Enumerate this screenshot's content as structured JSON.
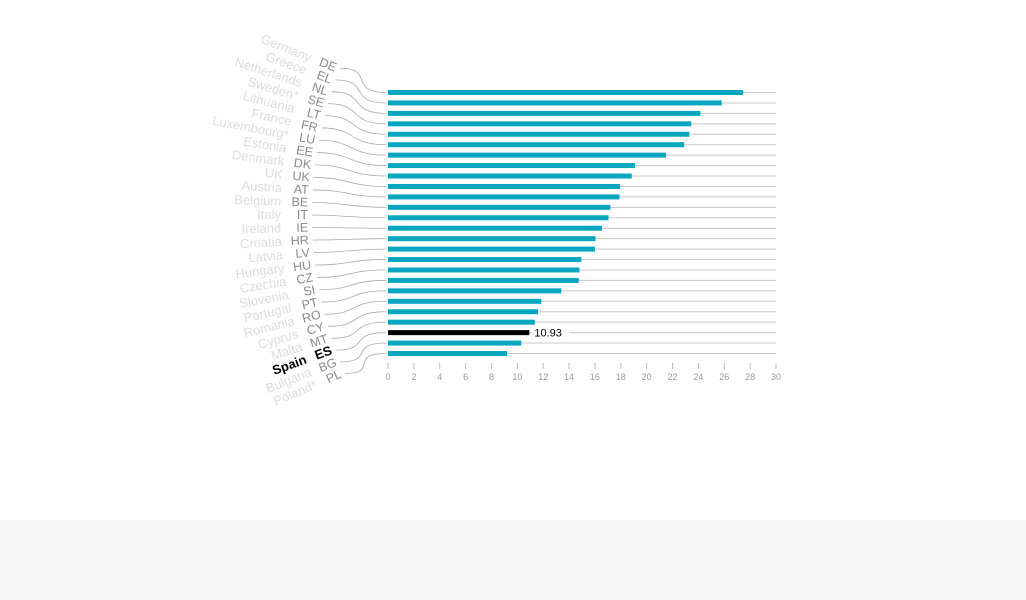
{
  "chart_data": {
    "type": "bar",
    "orientation": "horizontal",
    "codes": [
      "DE",
      "EL",
      "NL",
      "SE",
      "LT",
      "FR",
      "LU",
      "EE",
      "DK",
      "UK",
      "AT",
      "BE",
      "IT",
      "IE",
      "HR",
      "LV",
      "HU",
      "CZ",
      "SI",
      "PT",
      "RO",
      "CY",
      "MT",
      "ES",
      "BG",
      "PL"
    ],
    "categories": [
      "Germany",
      "Greece",
      "Netherlands",
      "Sweden*",
      "Lithuania",
      "France",
      "Luxembourg*",
      "Estonia",
      "Denmark",
      "UK",
      "Austria",
      "Belgium",
      "Italy",
      "Ireland",
      "Croatia",
      "Latvia",
      "Hungary",
      "Czechia",
      "Slovenia",
      "Portugal",
      "Romania",
      "Cyprus",
      "Malta",
      "Spain",
      "Bulgaria",
      "Poland*"
    ],
    "values": [
      27.45,
      25.8,
      24.15,
      23.45,
      23.3,
      22.9,
      21.5,
      19.1,
      18.85,
      17.95,
      17.9,
      17.2,
      17.05,
      16.55,
      16.05,
      16.0,
      14.95,
      14.8,
      14.75,
      13.4,
      11.85,
      11.6,
      11.35,
      10.93,
      10.3,
      9.2
    ],
    "highlight": {
      "code": "ES",
      "label": "10.93"
    },
    "xlim": [
      0,
      30
    ],
    "xticks": [
      "0",
      "2",
      "4",
      "6",
      "8",
      "10",
      "12",
      "14",
      "16",
      "18",
      "20",
      "22",
      "24",
      "26",
      "28",
      "30"
    ],
    "grid": true,
    "colors": {
      "bar": "#0aa6c0",
      "highlight": "#000000",
      "grid": "#c8c8c8",
      "code": "#8a8a8a",
      "name": "#dcdcdc"
    }
  }
}
